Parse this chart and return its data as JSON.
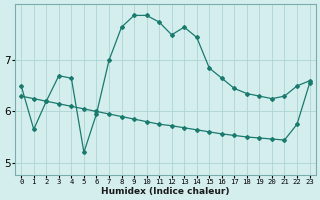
{
  "title": "",
  "xlabel": "Humidex (Indice chaleur)",
  "bg_color": "#d4eeee",
  "grid_color": "#aed4d4",
  "line_color": "#1a7a6e",
  "xlim": [
    -0.5,
    23.5
  ],
  "ylim": [
    4.75,
    8.1
  ],
  "yticks": [
    5,
    6,
    7
  ],
  "xtick_labels": [
    "0",
    "1",
    "2",
    "3",
    "4",
    "5",
    "6",
    "7",
    "8",
    "9",
    "10",
    "11",
    "12",
    "13",
    "14",
    "15",
    "16",
    "17",
    "18",
    "19",
    "20",
    "21",
    "22",
    "23"
  ],
  "line1_x": [
    0,
    1,
    2,
    3,
    4,
    5,
    6,
    7,
    8,
    9,
    10,
    11,
    12,
    13,
    14,
    15,
    16,
    17,
    18,
    19,
    20,
    21,
    22,
    23
  ],
  "line1_y": [
    6.5,
    5.65,
    6.2,
    6.7,
    6.65,
    5.2,
    5.95,
    7.0,
    7.65,
    7.88,
    7.88,
    7.75,
    7.5,
    7.65,
    7.45,
    6.85,
    6.65,
    6.45,
    6.35,
    6.3,
    6.25,
    6.3,
    6.5,
    6.6
  ],
  "line2_x": [
    0,
    1,
    2,
    3,
    4,
    5,
    6,
    7,
    8,
    9,
    10,
    11,
    12,
    13,
    14,
    15,
    16,
    17,
    18,
    19,
    20,
    21,
    22,
    23
  ],
  "line2_y": [
    6.3,
    6.25,
    6.2,
    6.15,
    6.1,
    6.05,
    6.0,
    5.95,
    5.9,
    5.85,
    5.8,
    5.75,
    5.72,
    5.68,
    5.64,
    5.6,
    5.56,
    5.53,
    5.5,
    5.48,
    5.46,
    5.44,
    5.75,
    6.55
  ]
}
